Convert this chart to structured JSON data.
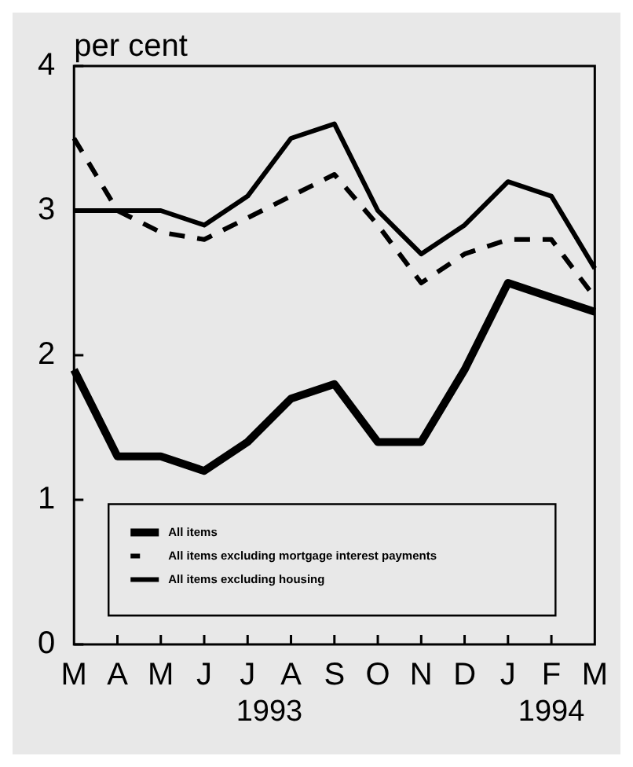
{
  "chart_data": {
    "type": "line",
    "ylabel": "per cent",
    "categories": [
      "M",
      "A",
      "M",
      "J",
      "J",
      "A",
      "S",
      "O",
      "N",
      "D",
      "J",
      "F",
      "M"
    ],
    "series": [
      {
        "name": "All items",
        "color": "#000000",
        "line_style": "solid",
        "values": [
          1.9,
          1.3,
          1.3,
          1.2,
          1.4,
          1.7,
          1.8,
          1.4,
          1.4,
          1.9,
          2.5,
          2.4,
          2.3
        ]
      },
      {
        "name": "All items excluding mortgage interest payments",
        "color": "#000000",
        "line_style": "dashed",
        "values": [
          3.5,
          3.0,
          2.85,
          2.8,
          2.95,
          3.1,
          3.25,
          2.9,
          2.5,
          2.7,
          2.8,
          2.8,
          2.4
        ]
      },
      {
        "name": "All items excluding housing",
        "color": "#000000",
        "line_style": "solid",
        "values": [
          3.0,
          3.0,
          3.0,
          2.9,
          3.1,
          3.5,
          3.6,
          3.0,
          2.7,
          2.9,
          3.2,
          3.1,
          2.6
        ]
      }
    ],
    "ylim": [
      0,
      4
    ],
    "yticks": [
      0,
      1,
      2,
      3,
      4
    ],
    "grid": false,
    "legend": "bottom",
    "marker": "none",
    "annotations": [
      "1993",
      "1994"
    ]
  }
}
